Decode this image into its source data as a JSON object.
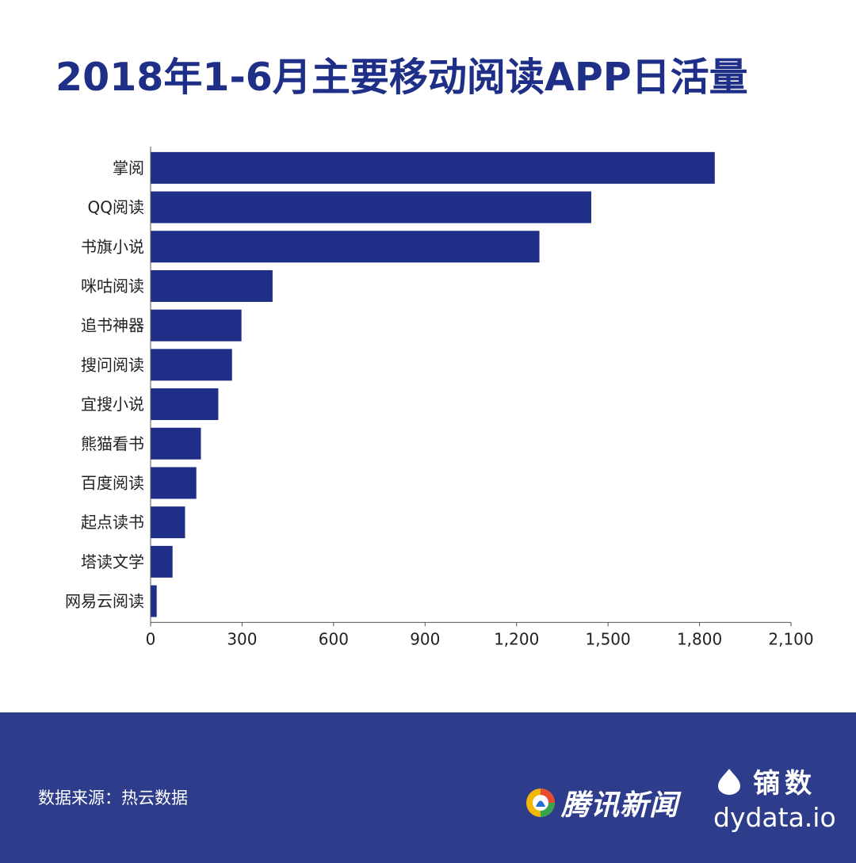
{
  "title": "2018年1-6月主要移动阅读APP日活量",
  "colors": {
    "bar": "#1f2f87",
    "title": "#1f2f87",
    "footer": "#2e3c8c",
    "axis": "#555555"
  },
  "chart_data": {
    "type": "bar",
    "orientation": "horizontal",
    "categories": [
      "掌阅",
      "QQ阅读",
      "书旗小说",
      "咪咕阅读",
      "追书神器",
      "搜问阅读",
      "宜搜小说",
      "熊猫看书",
      "百度阅读",
      "起点读书",
      "塔读文学",
      "网易云阅读"
    ],
    "values": [
      1850,
      1445,
      1275,
      400,
      298,
      267,
      222,
      165,
      150,
      113,
      72,
      20
    ],
    "xlim": [
      0,
      2100
    ],
    "xticks": [
      "0",
      "300",
      "600",
      "900",
      "1,200",
      "1,500",
      "1,800",
      "2,100"
    ],
    "grid": false,
    "legend": "none"
  },
  "footer": {
    "source": "数据来源：热云数据",
    "tencent_logo_text": "腾讯新闻",
    "dydata_cn": "镝数",
    "dydata_url": "dydata.io"
  }
}
